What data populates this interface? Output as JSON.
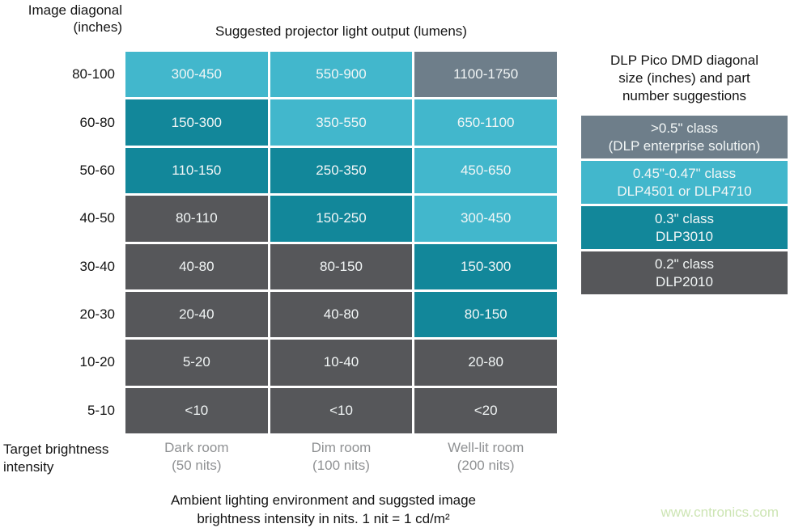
{
  "palette": {
    "cyan": "#42b7cc",
    "teal": "#12879a",
    "gray": "#56575a",
    "slate": "#6e7e8a",
    "cell_text": "#f2f6f6",
    "axis_text": "#141414",
    "muted_text": "#8f9193",
    "watermark": "#cde5b4"
  },
  "watermark": {
    "text": "www.cntronics.com"
  },
  "chart_data": {
    "type": "heatmap",
    "title": "Suggested projector light output (lumens)",
    "row_axis_label": "Image diagonal\n(inches)",
    "col_axis_label": "Target brightness\nintensity",
    "rows": [
      "80-100",
      "60-80",
      "50-60",
      "40-50",
      "30-40",
      "20-30",
      "10-20",
      "5-10"
    ],
    "columns": [
      {
        "label": "Dark room",
        "sublabel": "(50 nits)"
      },
      {
        "label": "Dim room",
        "sublabel": "(100 nits)"
      },
      {
        "label": "Well-lit room",
        "sublabel": "(200 nits)"
      }
    ],
    "cells": [
      [
        {
          "value": "300-450",
          "tone": "cyan"
        },
        {
          "value": "550-900",
          "tone": "cyan"
        },
        {
          "value": "1100-1750",
          "tone": "slate"
        }
      ],
      [
        {
          "value": "150-300",
          "tone": "teal"
        },
        {
          "value": "350-550",
          "tone": "cyan"
        },
        {
          "value": "650-1100",
          "tone": "cyan"
        }
      ],
      [
        {
          "value": "110-150",
          "tone": "teal"
        },
        {
          "value": "250-350",
          "tone": "teal"
        },
        {
          "value": "450-650",
          "tone": "cyan"
        }
      ],
      [
        {
          "value": "80-110",
          "tone": "gray"
        },
        {
          "value": "150-250",
          "tone": "teal"
        },
        {
          "value": "300-450",
          "tone": "cyan"
        }
      ],
      [
        {
          "value": "40-80",
          "tone": "gray"
        },
        {
          "value": "80-150",
          "tone": "gray"
        },
        {
          "value": "150-300",
          "tone": "teal"
        }
      ],
      [
        {
          "value": "20-40",
          "tone": "gray"
        },
        {
          "value": "40-80",
          "tone": "gray"
        },
        {
          "value": "80-150",
          "tone": "teal"
        }
      ],
      [
        {
          "value": "5-20",
          "tone": "gray"
        },
        {
          "value": "10-40",
          "tone": "gray"
        },
        {
          "value": "20-80",
          "tone": "gray"
        }
      ],
      [
        {
          "value": "<10",
          "tone": "gray"
        },
        {
          "value": "<10",
          "tone": "gray"
        },
        {
          "value": "<20",
          "tone": "gray"
        }
      ]
    ],
    "legend": {
      "title": "DLP Pico DMD diagonal\nsize (inches) and part\nnumber suggestions",
      "items": [
        {
          "label": ">0.5\" class\n(DLP enterprise solution)",
          "tone": "slate"
        },
        {
          "label": "0.45\"-0.47\" class\nDLP4501 or DLP4710",
          "tone": "cyan"
        },
        {
          "label": "0.3\" class\nDLP3010",
          "tone": "teal"
        },
        {
          "label": "0.2\" class\nDLP2010",
          "tone": "gray"
        }
      ]
    },
    "caption_line1": "Ambient lighting environment and suggsted image",
    "caption_line2": "brightness intensity in nits. 1 nit = 1 cd/m²"
  }
}
